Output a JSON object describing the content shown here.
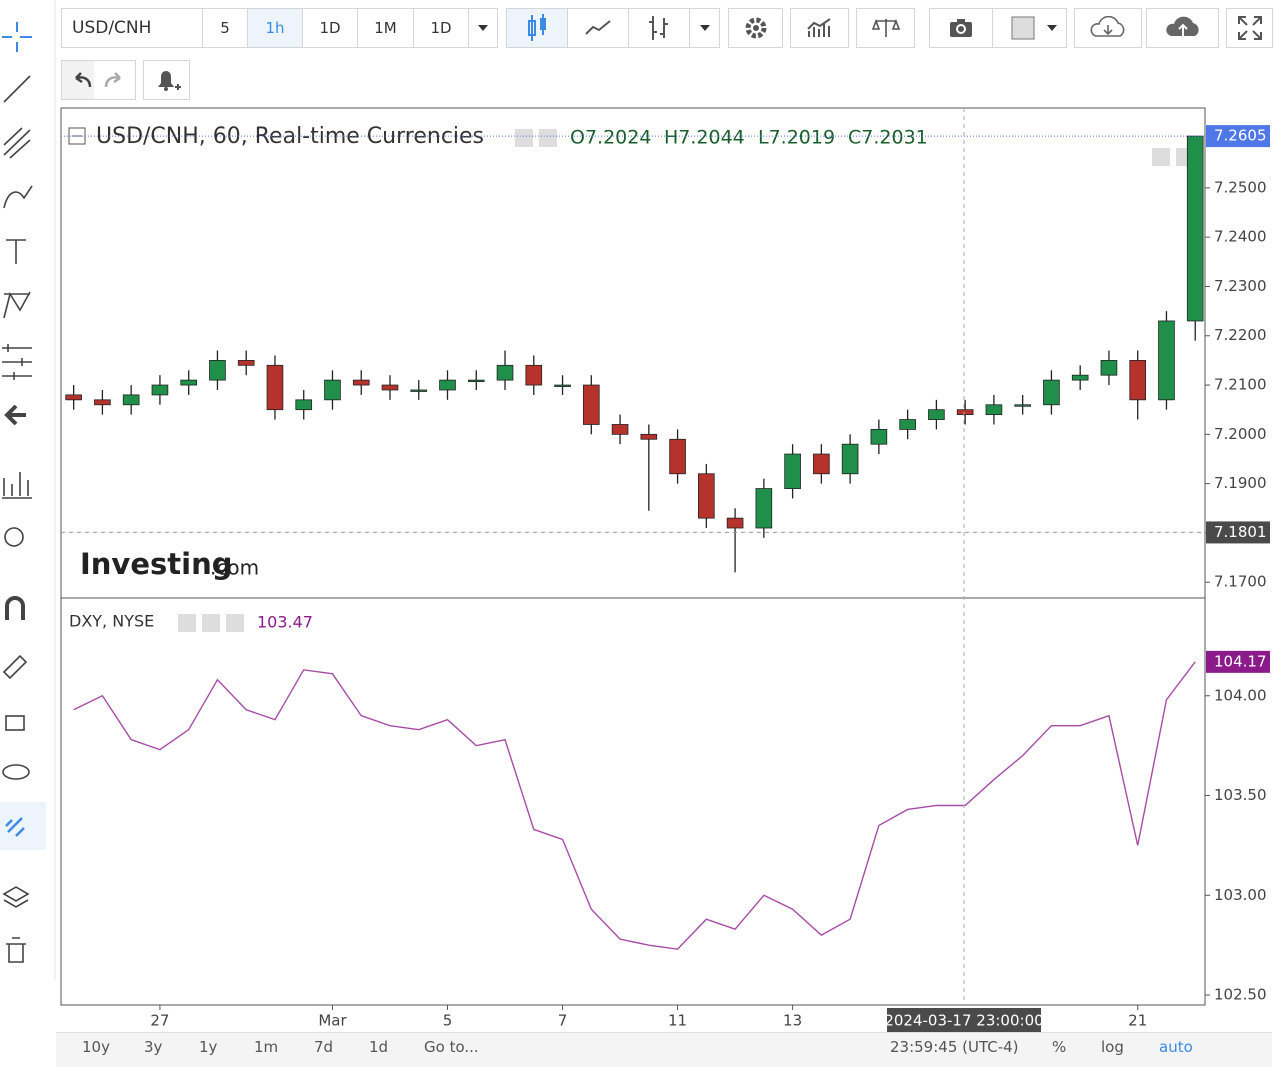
{
  "toolbar": {
    "symbol": "USD/CNH",
    "intervals": [
      "5",
      "1h",
      "1D",
      "1M",
      "1D"
    ]
  },
  "logo": {
    "brand": "Investing",
    "suffix": ".com"
  },
  "chart_data": [
    {
      "type": "candlestick",
      "title": "USD/CNH, 60, Real-time Currencies",
      "ohlc_legend": [
        "O7.2024",
        "H7.2044",
        "L7.2019",
        "C7.2031"
      ],
      "up_color": "#1f8f4a",
      "down_color": "#b5332c",
      "x": [
        -1.5,
        -1,
        -0.5,
        0,
        0.5,
        1,
        1.5,
        2,
        2.5,
        3,
        3.5,
        4,
        4.5,
        5,
        5.5,
        6,
        6.5,
        7,
        7.5,
        8,
        8.5,
        9,
        9.5,
        10,
        10.5,
        11,
        11.5,
        12,
        12.5,
        13,
        13.5,
        14,
        14.5,
        15,
        15.5,
        16,
        16.5,
        17,
        17.5,
        18
      ],
      "open": [
        7.208,
        7.207,
        7.206,
        7.208,
        7.21,
        7.211,
        7.215,
        7.214,
        7.205,
        7.207,
        7.211,
        7.21,
        7.209,
        7.209,
        7.211,
        7.211,
        7.214,
        7.21,
        7.21,
        7.202,
        7.2,
        7.199,
        7.192,
        7.183,
        7.181,
        7.189,
        7.196,
        7.192,
        7.198,
        7.201,
        7.203,
        7.205,
        7.204,
        7.206,
        7.206,
        7.211,
        7.212,
        7.215,
        7.207,
        7.223
      ],
      "high": [
        7.21,
        7.209,
        7.21,
        7.212,
        7.213,
        7.217,
        7.217,
        7.216,
        7.209,
        7.213,
        7.213,
        7.212,
        7.211,
        7.213,
        7.213,
        7.217,
        7.216,
        7.212,
        7.212,
        7.204,
        7.202,
        7.201,
        7.194,
        7.185,
        7.191,
        7.198,
        7.198,
        7.2,
        7.203,
        7.205,
        7.207,
        7.207,
        7.208,
        7.208,
        7.213,
        7.214,
        7.217,
        7.217,
        7.225,
        7.2605
      ],
      "low": [
        7.205,
        7.204,
        7.204,
        7.206,
        7.208,
        7.209,
        7.212,
        7.203,
        7.203,
        7.205,
        7.208,
        7.207,
        7.207,
        7.207,
        7.209,
        7.209,
        7.208,
        7.208,
        7.2,
        7.198,
        7.1845,
        7.19,
        7.181,
        7.172,
        7.179,
        7.187,
        7.19,
        7.19,
        7.196,
        7.199,
        7.201,
        7.202,
        7.202,
        7.204,
        7.204,
        7.209,
        7.21,
        7.203,
        7.205,
        7.219
      ],
      "close": [
        7.207,
        7.206,
        7.208,
        7.21,
        7.211,
        7.215,
        7.214,
        7.205,
        7.207,
        7.211,
        7.21,
        7.209,
        7.209,
        7.211,
        7.211,
        7.214,
        7.21,
        7.21,
        7.202,
        7.2,
        7.199,
        7.192,
        7.183,
        7.181,
        7.189,
        7.196,
        7.192,
        7.198,
        7.201,
        7.203,
        7.205,
        7.204,
        7.206,
        7.206,
        7.211,
        7.212,
        7.215,
        7.207,
        7.223,
        7.2605
      ],
      "xlim": [
        -1.72,
        18.17
      ],
      "ylim": [
        7.1668,
        7.2662
      ],
      "yticks": [
        {
          "value": 7.17,
          "label": "7.1700"
        },
        {
          "value": 7.18,
          "label": "7.1800"
        },
        {
          "value": 7.19,
          "label": "7.1900"
        },
        {
          "value": 7.2,
          "label": "7.2000"
        },
        {
          "value": 7.21,
          "label": "7.2100"
        },
        {
          "value": 7.22,
          "label": "7.2200"
        },
        {
          "value": 7.23,
          "label": "7.2300"
        },
        {
          "value": 7.24,
          "label": "7.2400"
        },
        {
          "value": 7.25,
          "label": "7.2500"
        }
      ],
      "last_price": {
        "value": 7.2605,
        "label": "7.2605"
      },
      "crosshair_price": {
        "value": 7.1801,
        "label": "7.1801"
      }
    },
    {
      "type": "line",
      "title": "DXY, NYSE",
      "legend_value": "103.47",
      "x": [
        -1.5,
        -1,
        -0.5,
        0,
        0.5,
        1,
        1.5,
        2,
        2.5,
        3,
        3.5,
        4,
        4.5,
        5,
        5.5,
        6,
        6.5,
        7,
        7.5,
        8,
        8.5,
        9,
        9.5,
        10,
        10.5,
        11,
        11.5,
        12,
        12.5,
        13,
        13.5,
        14,
        14.5,
        15,
        15.5,
        16,
        16.5,
        17,
        17.5,
        18
      ],
      "series": [
        {
          "color": "#a64ca6",
          "values": [
            103.93,
            104.0,
            103.78,
            103.73,
            103.83,
            104.08,
            103.93,
            103.88,
            104.13,
            104.11,
            103.9,
            103.85,
            103.83,
            103.88,
            103.75,
            103.78,
            103.33,
            103.28,
            102.93,
            102.78,
            102.75,
            102.73,
            102.88,
            102.83,
            103.0,
            102.93,
            102.8,
            102.88,
            103.35,
            103.43,
            103.45,
            103.45,
            103.58,
            103.7,
            103.85,
            103.85,
            103.9,
            103.25,
            103.98,
            104.17
          ]
        }
      ],
      "xlim": [
        -1.72,
        18.17
      ],
      "ylim": [
        102.45,
        104.49
      ],
      "yticks": [
        {
          "value": 102.5,
          "label": "102.50"
        },
        {
          "value": 103,
          "label": "103.00"
        },
        {
          "value": 103.5,
          "label": "103.50"
        },
        {
          "value": 104,
          "label": "104.00"
        }
      ],
      "xticks": [
        {
          "value": 0,
          "label": "27"
        },
        {
          "value": 3,
          "label": "Mar"
        },
        {
          "value": 5,
          "label": "5"
        },
        {
          "value": 7,
          "label": "7"
        },
        {
          "value": 9,
          "label": "11"
        },
        {
          "value": 11,
          "label": "13"
        },
        {
          "value": 17,
          "label": "21"
        }
      ],
      "crosshair_x": {
        "value": 13.98,
        "label": "2024-03-17 23:00:00"
      },
      "last_price": {
        "value": 104.17,
        "label": "104.17"
      }
    }
  ],
  "bottom_bar": {
    "ranges": [
      "10y",
      "3y",
      "1y",
      "1m",
      "7d",
      "1d"
    ],
    "goto": "Go to...",
    "time": "23:59:45 (UTC-4)",
    "options": [
      "%",
      "log",
      "auto"
    ]
  }
}
